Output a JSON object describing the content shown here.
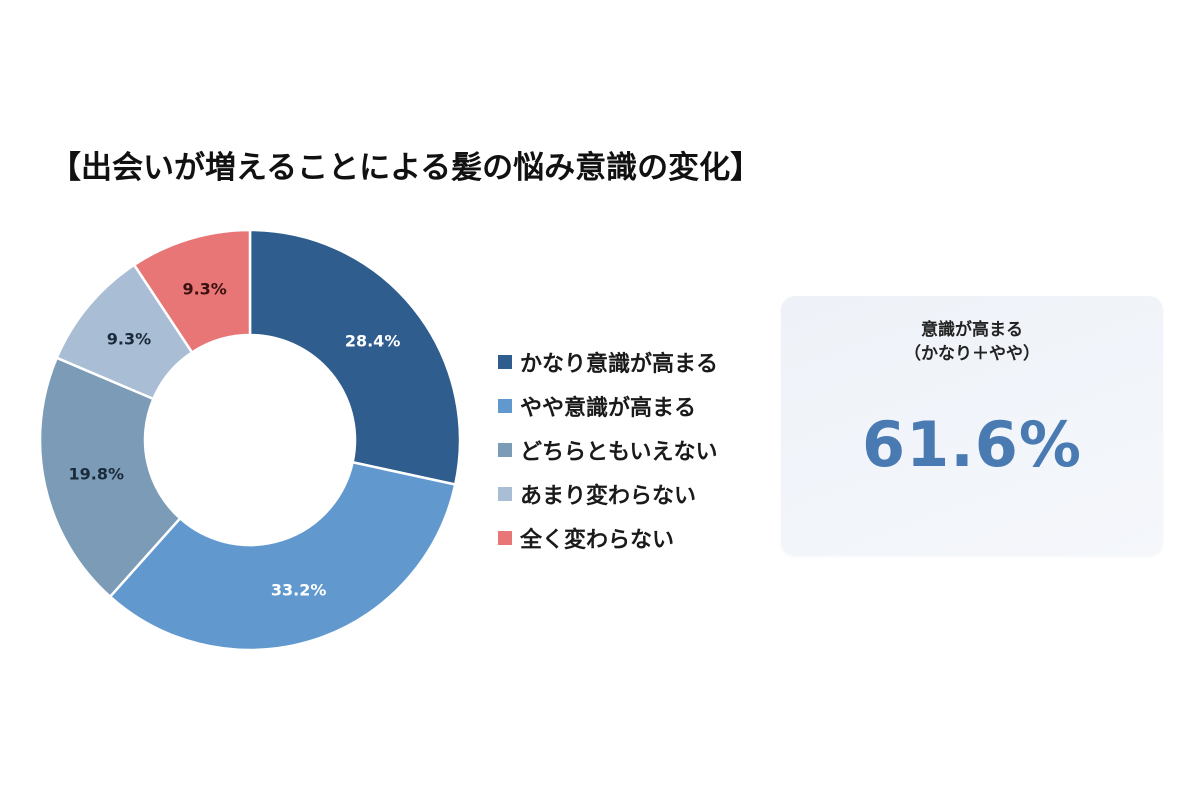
{
  "title": "【出会いが増えることによる髪の悩み意識の変化】",
  "chart_data": {
    "type": "pie",
    "variant": "donut",
    "title": "【出会いが増えることによる髪の悩み意識の変化】",
    "categories": [
      "かなり意識が高まる",
      "やや意識が高まる",
      "どちらともいえない",
      "あまり変わらない",
      "全く変わらない"
    ],
    "values": [
      28.4,
      33.2,
      19.8,
      9.3,
      9.3
    ],
    "unit": "%",
    "colors": [
      "#2f5d8e",
      "#6199cf",
      "#7b9bb7",
      "#a9bed5",
      "#e87676"
    ],
    "label_colors": [
      "#ffffff",
      "#ffffff",
      "#1a2a3a",
      "#1a2a3a",
      "#3a1010"
    ],
    "start_angle_deg": 0,
    "direction": "clockwise",
    "legend_position": "right"
  },
  "slice_labels": [
    "28.4%",
    "33.2%",
    "19.8%",
    "9.3%",
    "9.3%"
  ],
  "legend": {
    "items": [
      {
        "label": "かなり意識が高まる",
        "color": "#2f5d8e"
      },
      {
        "label": "やや意識が高まる",
        "color": "#6199cf"
      },
      {
        "label": "どちらともいえない",
        "color": "#7b9bb7"
      },
      {
        "label": "あまり変わらない",
        "color": "#a9bed5"
      },
      {
        "label": "全く変わらない",
        "color": "#e87676"
      }
    ]
  },
  "summary": {
    "title_line1": "意識が高まる",
    "title_line2": "（かなり＋やや）",
    "value": "61.6%",
    "accent_color": "#4a7ab2"
  }
}
